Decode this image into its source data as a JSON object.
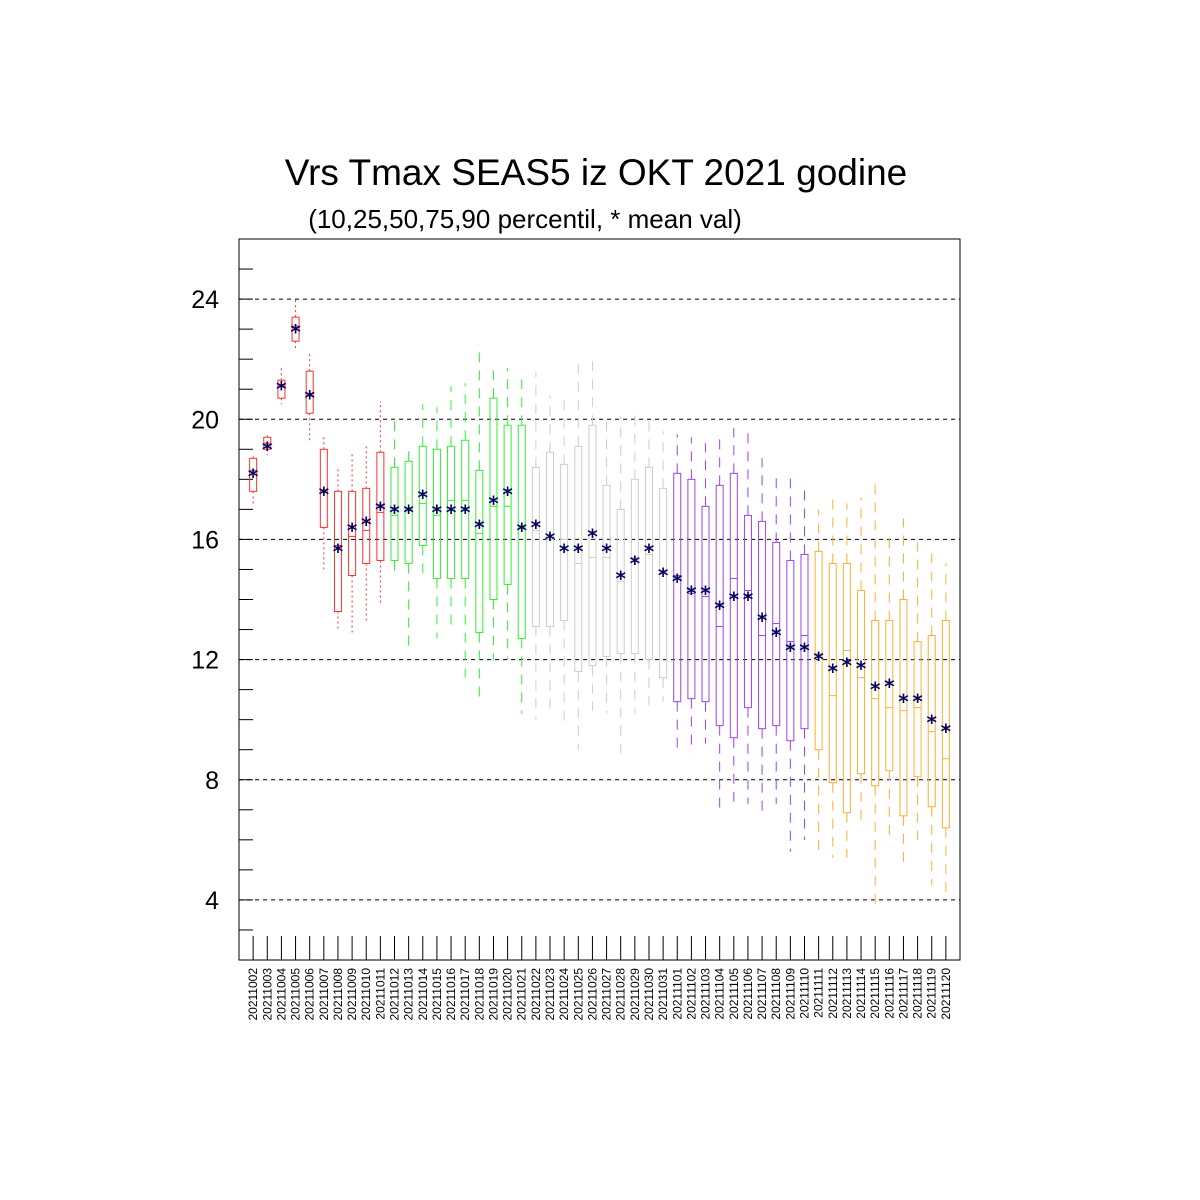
{
  "chart_data": {
    "type": "box",
    "title": "Vrs Tmax SEAS5 iz OKT 2021 godine",
    "subtitle": "(10,25,50,75,90 percentil, * mean val)",
    "ylim": [
      2,
      26
    ],
    "yticks": [
      4,
      8,
      12,
      16,
      20,
      24
    ],
    "grid": "horizontal dashed",
    "colors": {
      "red": "#ff3030",
      "green": "#33ee33",
      "gray": "#cccccc",
      "purple": "#a040f0",
      "orange": "#ffae33",
      "mean": "#000060"
    },
    "categories": [
      "20211002",
      "20211003",
      "20211004",
      "20211005",
      "20211006",
      "20211007",
      "20211008",
      "20211009",
      "20211010",
      "20211011",
      "20211012",
      "20211013",
      "20211014",
      "20211015",
      "20211016",
      "20211017",
      "20211018",
      "20211019",
      "20211020",
      "20211021",
      "20211022",
      "20211023",
      "20211024",
      "20211025",
      "20211026",
      "20211027",
      "20211028",
      "20211029",
      "20211030",
      "20211031",
      "20211101",
      "20211102",
      "20211103",
      "20211104",
      "20211105",
      "20211106",
      "20211107",
      "20211108",
      "20211109",
      "20211110",
      "20211111",
      "20211112",
      "20211113",
      "20211114",
      "20211115",
      "20211116",
      "20211117",
      "20211118",
      "20211119",
      "20211120"
    ],
    "groups": [
      "red",
      "red",
      "red",
      "red",
      "red",
      "red",
      "red",
      "red",
      "red",
      "red",
      "green",
      "green",
      "green",
      "green",
      "green",
      "green",
      "green",
      "green",
      "green",
      "green",
      "gray",
      "gray",
      "gray",
      "gray",
      "gray",
      "gray",
      "gray",
      "gray",
      "gray",
      "gray",
      "purple",
      "purple",
      "purple",
      "purple",
      "purple",
      "purple",
      "purple",
      "purple",
      "purple",
      "purple",
      "orange",
      "orange",
      "orange",
      "orange",
      "orange",
      "orange",
      "orange",
      "orange",
      "orange",
      "orange"
    ],
    "p10": [
      17.2,
      18.8,
      20.5,
      22.3,
      19.3,
      14.9,
      13.0,
      12.9,
      13.3,
      13.8,
      14.8,
      12.4,
      14.8,
      12.7,
      13.1,
      11.4,
      10.6,
      12.0,
      12.0,
      10.2,
      10.0,
      10.1,
      9.8,
      9.0,
      10.3,
      10.2,
      8.6,
      10.2,
      10.3,
      10.6,
      9.0,
      8.9,
      9.2,
      6.9,
      7.2,
      7.2,
      6.9,
      7.2,
      5.6,
      6.0,
      5.6,
      5.4,
      5.4,
      6.5,
      3.7,
      5.9,
      5.2,
      6.0,
      4.5,
      4.2
    ],
    "p25": [
      17.6,
      19.0,
      20.7,
      22.6,
      20.2,
      16.4,
      13.6,
      14.8,
      15.2,
      15.3,
      15.3,
      15.2,
      15.8,
      14.7,
      14.7,
      14.7,
      12.9,
      14.0,
      14.5,
      12.7,
      13.1,
      13.1,
      13.3,
      11.6,
      11.8,
      12.1,
      12.2,
      12.2,
      12.0,
      11.4,
      10.6,
      10.7,
      10.6,
      9.8,
      9.4,
      10.4,
      9.7,
      9.8,
      9.3,
      9.7,
      9.0,
      7.9,
      6.9,
      8.2,
      7.8,
      8.3,
      6.8,
      8.1,
      7.1,
      6.4
    ],
    "p50": [
      18.3,
      19.2,
      21.1,
      23.1,
      20.8,
      17.6,
      15.8,
      16.1,
      16.3,
      16.9,
      16.8,
      17.0,
      17.2,
      16.8,
      17.3,
      17.3,
      16.2,
      17.1,
      17.1,
      16.4,
      16.3,
      16.0,
      16.0,
      15.2,
      15.4,
      15.4,
      14.6,
      15.4,
      15.5,
      14.9,
      14.8,
      14.2,
      14.1,
      13.1,
      14.7,
      14.3,
      12.8,
      13.2,
      12.6,
      12.8,
      12.2,
      10.8,
      12.3,
      11.4,
      10.7,
      10.4,
      10.3,
      10.4,
      9.6,
      8.7
    ],
    "p75": [
      18.7,
      19.4,
      21.3,
      23.4,
      21.6,
      19.0,
      17.6,
      17.6,
      17.7,
      18.9,
      18.4,
      18.6,
      19.1,
      19.0,
      19.1,
      19.3,
      18.3,
      20.7,
      19.8,
      19.8,
      18.4,
      18.9,
      18.5,
      19.1,
      19.8,
      17.8,
      17.0,
      18.0,
      18.4,
      17.7,
      18.2,
      18.0,
      17.1,
      17.8,
      18.2,
      16.8,
      16.6,
      15.9,
      15.3,
      15.5,
      15.6,
      15.2,
      15.2,
      14.3,
      13.3,
      13.3,
      14.0,
      12.6,
      12.8,
      13.3
    ],
    "p90": [
      18.8,
      19.5,
      21.8,
      24.0,
      22.2,
      19.4,
      18.4,
      18.9,
      19.1,
      20.6,
      20.2,
      19.2,
      20.5,
      20.4,
      21.1,
      21.2,
      22.5,
      21.8,
      21.7,
      21.4,
      21.6,
      20.8,
      20.7,
      22.0,
      22.0,
      20.0,
      20.1,
      20.3,
      20.1,
      19.6,
      19.5,
      19.4,
      19.2,
      19.4,
      19.7,
      19.7,
      18.7,
      18.1,
      18.2,
      17.9,
      17.0,
      17.5,
      17.2,
      17.4,
      17.9,
      16.2,
      16.7,
      15.9,
      15.7,
      15.2
    ],
    "mean": [
      18.2,
      19.1,
      21.1,
      23.0,
      20.8,
      17.6,
      15.7,
      16.4,
      16.6,
      17.1,
      17.0,
      17.0,
      17.5,
      17.0,
      17.0,
      17.0,
      16.5,
      17.3,
      17.6,
      16.4,
      16.5,
      16.1,
      15.7,
      15.7,
      16.2,
      15.7,
      14.8,
      15.3,
      15.7,
      14.9,
      14.7,
      14.3,
      14.3,
      13.8,
      14.1,
      14.1,
      13.4,
      12.9,
      12.4,
      12.4,
      12.1,
      11.7,
      11.9,
      11.8,
      11.1,
      11.2,
      10.7,
      10.7,
      10.0,
      9.7
    ],
    "mean_symbol": "*"
  }
}
